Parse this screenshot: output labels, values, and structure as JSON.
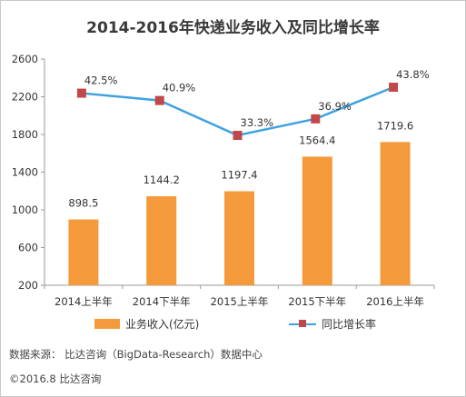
{
  "title": "2014-2016年快递业务收入及同比增长率",
  "chart_data": {
    "type": "bar+line",
    "title": "2014-2016年快递业务收入及同比增长率",
    "categories": [
      "2014上半年",
      "2014下半年",
      "2015上半年",
      "2015下半年",
      "2016上半年"
    ],
    "series": [
      {
        "name": "业务收入(亿元)",
        "type": "bar",
        "values": [
          898.5,
          1144.2,
          1197.4,
          1564.4,
          1719.6
        ],
        "labels": [
          "898.5",
          "1144.2",
          "1197.4",
          "1564.4",
          "1719.6"
        ],
        "color": "#f59a3b"
      },
      {
        "name": "同比增长率",
        "type": "line",
        "values": [
          42.5,
          40.9,
          33.3,
          36.9,
          43.8
        ],
        "labels": [
          "42.5%",
          "40.9%",
          "33.3%",
          "36.9%",
          "43.8%"
        ],
        "color": "#3ea2e0",
        "marker_color": "#c0484a"
      }
    ],
    "y_ticks": [
      200,
      600,
      1000,
      1400,
      1800,
      2200,
      2600
    ],
    "ylim": [
      200,
      2600
    ],
    "legend_position": "bottom",
    "grid": false
  },
  "footer": {
    "source": "数据来源： 比达咨询（BigData-Research）数据中心",
    "copyright": "©2016.8  比达咨询"
  }
}
